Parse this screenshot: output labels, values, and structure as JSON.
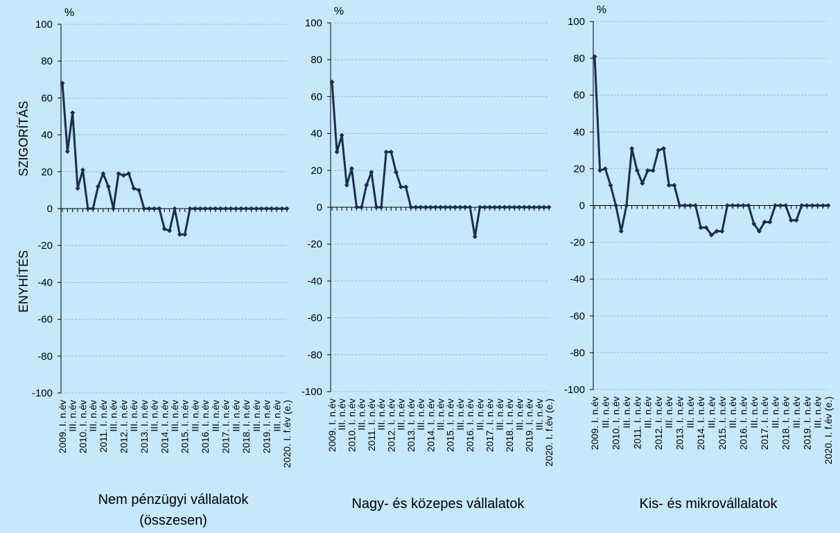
{
  "chart_data": [
    {
      "type": "line",
      "title": "Nem pénzügyi vállalatok (összesen)",
      "unit": "%",
      "ylabel_top": "SZIGORÍTÁS",
      "ylabel_bottom": "ENYHÍTÉS",
      "categories": [
        "2009. I. n.év",
        null,
        "III. n.év",
        null,
        "2010. I. n.év",
        null,
        "III. n.év",
        null,
        "2011. I. n.év",
        null,
        "III. n.év",
        null,
        "2012. I. n.év",
        null,
        "III. n.év",
        null,
        "2013. I. n.év",
        null,
        "III. n.év",
        null,
        "2014. I. n.év",
        null,
        "III. n.év",
        null,
        "2015. I. n.év",
        null,
        "III. n.év",
        null,
        "2016. I. n.év",
        null,
        "III. n.év",
        null,
        "2017. I. n.év",
        null,
        "III. n.év",
        null,
        "2018. I. n.év",
        null,
        "III. n.év",
        null,
        "2019. I. n.év",
        null,
        "III. n.év",
        null,
        "2020. I. f.év (e.)"
      ],
      "values": [
        68,
        31,
        52,
        11,
        21,
        0,
        0,
        12,
        19,
        12,
        0,
        19,
        18,
        19,
        11,
        10,
        0,
        0,
        0,
        0,
        -11,
        -12,
        0,
        -14,
        -14,
        0,
        0,
        0,
        0,
        0,
        0,
        0,
        0,
        0,
        0,
        0,
        0,
        0,
        0,
        0,
        0,
        0,
        0,
        0,
        0
      ],
      "color": "#1c2b52",
      "ylim": [
        -100,
        100
      ],
      "yticks": [
        -100,
        -80,
        -60,
        -40,
        -20,
        0,
        20,
        40,
        60,
        80,
        100
      ],
      "grid": true
    },
    {
      "type": "line",
      "title": "Nagy- és közepes vállalatok",
      "unit": "%",
      "categories": [
        "2009. I. n.év",
        null,
        "III. n.év",
        null,
        "2010. I. n.év",
        null,
        "III. n.év",
        null,
        "2011. I. n.év",
        null,
        "III. n.év",
        null,
        "2012. I. n.év",
        null,
        "III. n.év",
        null,
        "2013. I. n.év",
        null,
        "III. n.év",
        null,
        "2014. I. n.év",
        null,
        "III. n.év",
        null,
        "2015. I. n.év",
        null,
        "III. n.év",
        null,
        "2016. I. n.év",
        null,
        "III. n.év",
        null,
        "2017. I. n.év",
        null,
        "III. n.év",
        null,
        "2018. I. n.év",
        null,
        "III. n.év",
        null,
        "2019. I. n.év",
        null,
        "III. n.év",
        null,
        "2020. I. f.év (e.)"
      ],
      "values": [
        68,
        30,
        39,
        12,
        21,
        0,
        0,
        12,
        19,
        0,
        0,
        30,
        30,
        19,
        11,
        11,
        0,
        0,
        0,
        0,
        0,
        0,
        0,
        0,
        0,
        0,
        0,
        0,
        0,
        -16,
        0,
        0,
        0,
        0,
        0,
        0,
        0,
        0,
        0,
        0,
        0,
        0,
        0,
        0,
        0
      ],
      "color": "#1c2b52",
      "ylim": [
        -100,
        100
      ],
      "yticks": [
        -100,
        -80,
        -60,
        -40,
        -20,
        0,
        20,
        40,
        60,
        80,
        100
      ],
      "grid": true
    },
    {
      "type": "line",
      "title": "Kis- és mikrovállalatok",
      "unit": "%",
      "categories": [
        "2009. I. n.év",
        null,
        "III. n.év",
        null,
        "2010. I. n.év",
        null,
        "III. n.év",
        null,
        "2011. I. n.év",
        null,
        "III. n.év",
        null,
        "2012. I. n.év",
        null,
        "III. n.év",
        null,
        "2013. I. n.év",
        null,
        "III. n.év",
        null,
        "2014. I. n.év",
        null,
        "III. n.év",
        null,
        "2015. I. n.év",
        null,
        "III. n.év",
        null,
        "2016. I. n.év",
        null,
        "III. n.év",
        null,
        "2017. I. n.év",
        null,
        "III. n.év",
        null,
        "2018. I. n.év",
        null,
        "III. n.év",
        null,
        "2019. I. n.év",
        null,
        "III. n.év",
        null,
        "2020. I. f.év (e.)"
      ],
      "values": [
        81,
        19,
        20,
        11,
        0,
        -14,
        0,
        31,
        19,
        12,
        19,
        19,
        30,
        31,
        11,
        11,
        0,
        0,
        0,
        0,
        -12,
        -12,
        -16,
        -14,
        -14,
        0,
        0,
        0,
        0,
        0,
        -10,
        -14,
        -9,
        -9,
        0,
        0,
        0,
        -8,
        -8,
        0,
        0,
        0,
        0,
        0,
        0
      ],
      "color": "#1c2b52",
      "ylim": [
        -100,
        100
      ],
      "yticks": [
        -100,
        -80,
        -60,
        -40,
        -20,
        0,
        20,
        40,
        60,
        80,
        100
      ],
      "grid": true
    }
  ]
}
